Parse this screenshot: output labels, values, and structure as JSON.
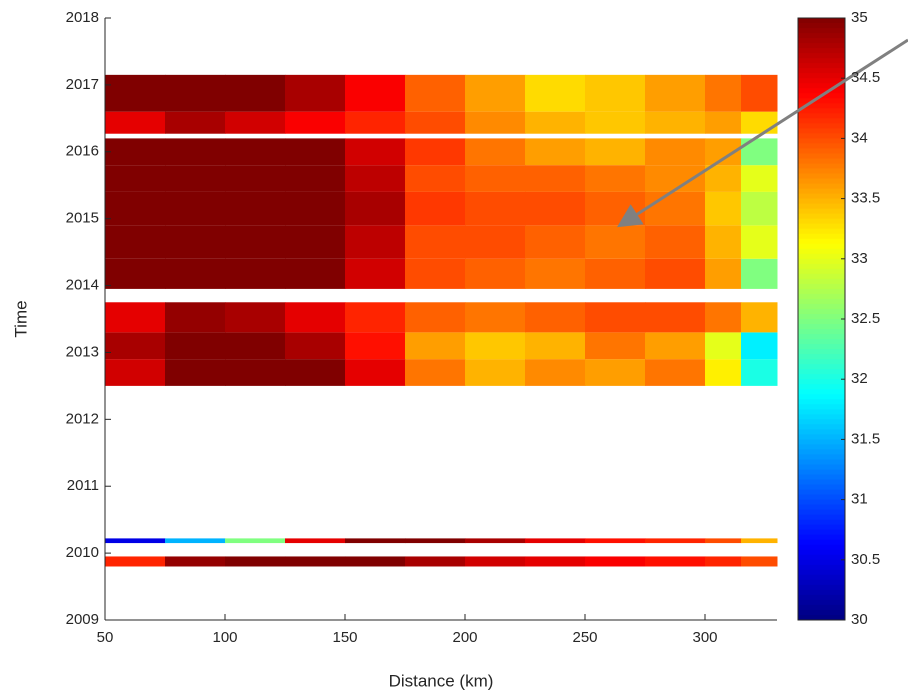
{
  "chart_data": {
    "type": "heatmap",
    "xlabel": "Distance (km)",
    "ylabel": "Time",
    "x_bins": [
      50,
      75,
      100,
      125,
      150,
      175,
      200,
      225,
      250,
      275,
      300,
      315,
      330
    ],
    "y_bins": [
      2009.8,
      2009.95,
      2010.15,
      2010.22,
      2012.5,
      2012.9,
      2013.3,
      2013.75,
      2013.95,
      2014.4,
      2014.9,
      2015.4,
      2015.8,
      2016.2,
      2016.27,
      2016.6,
      2017.15
    ],
    "z": [
      [
        34.2,
        34.9,
        35,
        35,
        35,
        34.8,
        34.6,
        34.5,
        34.4,
        34.3,
        34.2,
        34.0
      ],
      null,
      [
        30.5,
        31.5,
        32.5,
        34.5,
        35,
        35,
        34.8,
        34.5,
        34.3,
        34.2,
        34.0,
        33.5
      ],
      null,
      [
        34.6,
        35,
        35,
        35,
        34.5,
        33.8,
        33.5,
        33.7,
        33.6,
        33.8,
        33.2,
        32.0
      ],
      [
        34.8,
        35,
        35,
        34.8,
        34.3,
        33.6,
        33.4,
        33.5,
        33.8,
        33.6,
        33.0,
        31.8
      ],
      [
        34.5,
        34.9,
        34.8,
        34.5,
        34.2,
        33.9,
        33.8,
        33.9,
        34.0,
        34.0,
        33.8,
        33.5
      ],
      null,
      [
        35,
        35,
        35,
        35,
        34.6,
        34.0,
        33.9,
        33.8,
        33.9,
        34.0,
        33.6,
        32.5
      ],
      [
        35,
        35,
        35,
        35,
        34.7,
        34.0,
        34.0,
        33.9,
        33.8,
        33.9,
        33.5,
        33.0
      ],
      [
        35,
        35,
        35,
        35,
        34.8,
        34.1,
        34.0,
        34.0,
        33.9,
        33.8,
        33.4,
        32.8
      ],
      [
        35,
        35,
        35,
        35,
        34.7,
        34.0,
        33.9,
        33.9,
        33.8,
        33.7,
        33.5,
        33.0
      ],
      [
        35,
        35,
        35,
        35,
        34.6,
        34.1,
        33.8,
        33.6,
        33.5,
        33.7,
        33.6,
        32.5
      ],
      null,
      [
        34.5,
        34.8,
        34.6,
        34.4,
        34.2,
        34.0,
        33.7,
        33.5,
        33.4,
        33.5,
        33.6,
        33.3
      ],
      [
        35,
        35,
        35,
        34.8,
        34.4,
        33.9,
        33.6,
        33.3,
        33.4,
        33.6,
        33.8,
        34.0
      ]
    ],
    "colormap": "jet",
    "xlim": [
      50,
      330
    ],
    "xticks": [
      50,
      100,
      150,
      200,
      250,
      300
    ],
    "ylim": [
      2009,
      2018
    ],
    "yticks": [
      2009,
      2010,
      2011,
      2012,
      2013,
      2014,
      2015,
      2016,
      2017,
      2018
    ],
    "clim": [
      30,
      35
    ],
    "cticks": [
      30,
      30.5,
      31,
      31.5,
      32,
      32.5,
      33,
      33.5,
      34,
      34.5,
      35
    ]
  }
}
